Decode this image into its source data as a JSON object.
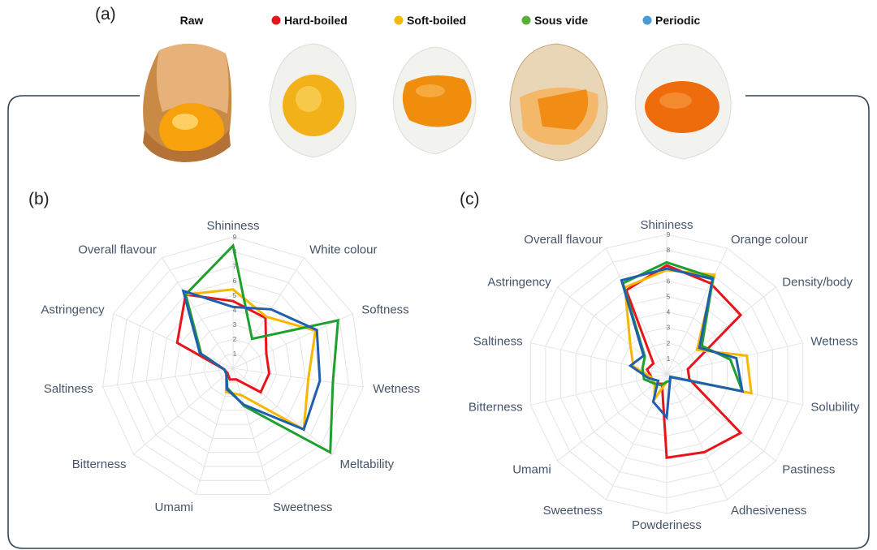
{
  "figure": {
    "panel_a": "(a)",
    "panel_b": "(b)",
    "panel_c": "(c)",
    "photos": [
      {
        "label": "Raw",
        "icon": "raw-egg-in-shell-photo"
      },
      {
        "label": "Hard-boiled",
        "icon": "hard-boiled-egg-photo"
      },
      {
        "label": "Soft-boiled",
        "icon": "soft-boiled-egg-photo"
      },
      {
        "label": "Sous vide",
        "icon": "sous-vide-egg-photo"
      },
      {
        "label": "Periodic",
        "icon": "periodic-egg-photo"
      }
    ],
    "legend": [
      {
        "name": "Hard-boiled",
        "color": "#e8141c"
      },
      {
        "name": "Soft-boiled",
        "color": "#f5b800"
      },
      {
        "name": "Sous vide",
        "color": "#1fa02e"
      },
      {
        "name": "Periodic",
        "color": "#1f5fae"
      }
    ]
  },
  "chart_data": [
    {
      "type": "radar",
      "panel": "(b)",
      "range": [
        0,
        9
      ],
      "ticks": [
        "1",
        "2",
        "3",
        "4",
        "5",
        "6",
        "7",
        "8",
        "9"
      ],
      "grid": true,
      "axes": [
        "Shininess",
        "White colour",
        "Softness",
        "Wetness",
        "Meltability",
        "Sweetness",
        "Umami",
        "Bitterness",
        "Saltiness",
        "Astringency",
        "Overall flavour"
      ],
      "series": [
        {
          "name": "Hard-boiled",
          "color": "#e8141c",
          "values": [
            4.6,
            4.1,
            2.5,
            2.5,
            2.5,
            0.8,
            0.8,
            0.5,
            0.6,
            4.2,
            6.0
          ]
        },
        {
          "name": "Soft-boiled",
          "color": "#f5b800",
          "values": [
            5.4,
            4.2,
            6.2,
            5.2,
            6.4,
            1.9,
            1.7,
            0.6,
            0.6,
            2.4,
            6.0
          ]
        },
        {
          "name": "Sous vide",
          "color": "#1fa02e",
          "values": [
            8.4,
            2.4,
            7.9,
            6.9,
            8.8,
            2.7,
            1.4,
            0.6,
            0.6,
            2.4,
            6.0
          ]
        },
        {
          "name": "Periodic",
          "color": "#1f5fae",
          "values": [
            4.2,
            4.8,
            6.3,
            6.0,
            6.4,
            2.6,
            1.5,
            0.6,
            0.6,
            2.5,
            6.3
          ]
        }
      ]
    },
    {
      "type": "radar",
      "panel": "(c)",
      "range": [
        0,
        9
      ],
      "ticks": [
        "1",
        "2",
        "3",
        "4",
        "5",
        "6",
        "7",
        "8",
        "9"
      ],
      "grid": true,
      "axes": [
        "Shininess",
        "Orange colour",
        "Density/body",
        "Wetness",
        "Solubility",
        "Pastiness",
        "Adhesiveness",
        "Powderiness",
        "Sweetness",
        "Umami",
        "Bitterness",
        "Saltiness",
        "Astringency",
        "Overall flavour"
      ],
      "series": [
        {
          "name": "Hard-boiled",
          "color": "#e8141c",
          "values": [
            7.0,
            6.5,
            6.1,
            1.4,
            1.5,
            6.1,
            5.6,
            5.4,
            0.7,
            1.0,
            1.0,
            1.3,
            1.1,
            6.0
          ]
        },
        {
          "name": "Soft-boiled",
          "color": "#f5b800",
          "values": [
            6.7,
            7.1,
            2.5,
            5.3,
            5.6,
            0.3,
            0.5,
            0.5,
            1.8,
            1.0,
            1.0,
            2.2,
            3.0,
            6.2
          ]
        },
        {
          "name": "Sous vide",
          "color": "#1fa02e",
          "values": [
            7.2,
            6.9,
            2.9,
            4.2,
            5.0,
            0.3,
            0.5,
            0.5,
            0.8,
            1.0,
            1.5,
            1.6,
            1.8,
            6.5
          ]
        },
        {
          "name": "Periodic",
          "color": "#1f5fae",
          "values": [
            6.8,
            6.8,
            2.7,
            4.6,
            5.0,
            0.3,
            0.5,
            2.8,
            2.0,
            0.7,
            1.2,
            2.4,
            1.9,
            6.7
          ]
        }
      ]
    }
  ]
}
